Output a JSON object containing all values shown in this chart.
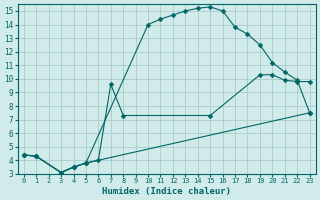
{
  "xlabel": "Humidex (Indice chaleur)",
  "bg_color": "#d1eaea",
  "line_color": "#006666",
  "grid_color": "#aacccc",
  "xlim": [
    -0.5,
    23.5
  ],
  "ylim": [
    3,
    15.5
  ],
  "xticks": [
    0,
    1,
    2,
    3,
    4,
    5,
    6,
    7,
    8,
    9,
    10,
    11,
    12,
    13,
    14,
    15,
    16,
    17,
    18,
    19,
    20,
    21,
    22,
    23
  ],
  "yticks": [
    3,
    4,
    5,
    6,
    7,
    8,
    9,
    10,
    11,
    12,
    13,
    14,
    15
  ],
  "line1_x": [
    0,
    1,
    3,
    4,
    5,
    10,
    11,
    12,
    13,
    14,
    15,
    16,
    17,
    18,
    19,
    20,
    21,
    22,
    23
  ],
  "line1_y": [
    4.4,
    4.3,
    3.1,
    3.5,
    3.8,
    14.0,
    14.4,
    14.7,
    15.0,
    15.2,
    15.3,
    15.0,
    13.8,
    13.3,
    12.5,
    11.2,
    10.5,
    9.9,
    7.5
  ],
  "line2_x": [
    0,
    1,
    3,
    4,
    5,
    6,
    7,
    8,
    15,
    19,
    20,
    21,
    22,
    23
  ],
  "line2_y": [
    4.4,
    4.3,
    3.1,
    3.5,
    3.8,
    4.0,
    9.6,
    7.3,
    7.3,
    10.3,
    10.3,
    9.9,
    9.8,
    9.8
  ],
  "line3_x": [
    0,
    1,
    3,
    4,
    5,
    23
  ],
  "line3_y": [
    4.4,
    4.3,
    3.1,
    3.5,
    3.8,
    7.5
  ]
}
